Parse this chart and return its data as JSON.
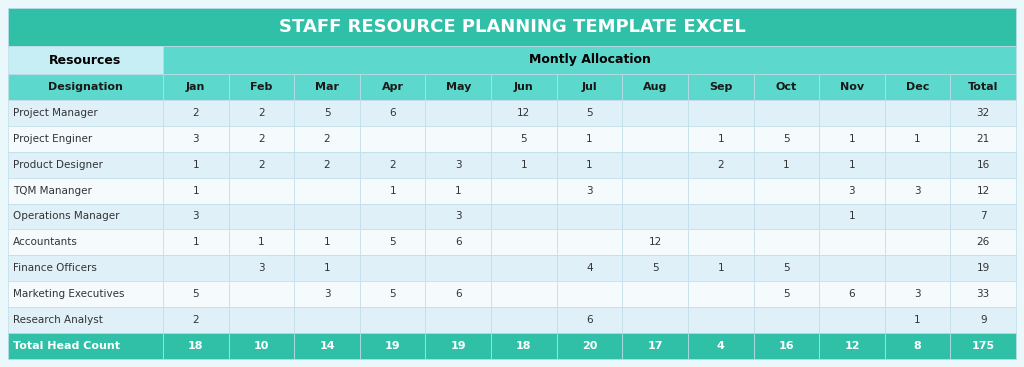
{
  "title": "STAFF RESOURCE PLANNING TEMPLATE EXCEL",
  "header1_left": "Resources",
  "header1_right": "Montly Allocation",
  "columns": [
    "Designation",
    "Jan",
    "Feb",
    "Mar",
    "Apr",
    "May",
    "Jun",
    "Jul",
    "Aug",
    "Sep",
    "Oct",
    "Nov",
    "Dec",
    "Total"
  ],
  "rows": [
    [
      "Project Manager",
      2,
      2,
      5,
      6,
      "",
      12,
      5,
      "",
      "",
      "",
      "",
      "",
      32
    ],
    [
      "Project Enginer",
      3,
      2,
      2,
      "",
      "",
      5,
      1,
      "",
      1,
      5,
      1,
      1,
      21
    ],
    [
      "Product Designer",
      1,
      2,
      2,
      2,
      3,
      1,
      1,
      "",
      2,
      1,
      1,
      "",
      16
    ],
    [
      "TQM Mananger",
      1,
      "",
      "",
      1,
      1,
      "",
      3,
      "",
      "",
      "",
      3,
      3,
      12
    ],
    [
      "Operations Manager",
      3,
      "",
      "",
      "",
      3,
      "",
      "",
      "",
      "",
      "",
      1,
      "",
      7
    ],
    [
      "Accountants",
      1,
      1,
      1,
      5,
      6,
      "",
      "",
      12,
      "",
      "",
      "",
      "",
      26
    ],
    [
      "Finance Officers",
      "",
      3,
      1,
      "",
      "",
      "",
      4,
      5,
      1,
      5,
      "",
      "",
      19
    ],
    [
      "Marketing Executives",
      5,
      "",
      3,
      5,
      6,
      "",
      "",
      "",
      "",
      5,
      6,
      3,
      33
    ],
    [
      "Research Analyst",
      2,
      "",
      "",
      "",
      "",
      "",
      6,
      "",
      "",
      "",
      "",
      1,
      9
    ]
  ],
  "totals": [
    "Total Head Count",
    18,
    10,
    14,
    19,
    19,
    18,
    20,
    17,
    4,
    16,
    12,
    8,
    175
  ],
  "colors": {
    "title_bg": "#30c0a8",
    "title_text": "#ffffff",
    "header1_left_bg": "#c8eef5",
    "header1_right_bg": "#5dd8cc",
    "header1_text": "#000000",
    "header2_bg": "#5dd8cc",
    "header2_text": "#1a1a1a",
    "row_odd_bg": "#dff0f8",
    "row_even_bg": "#f5fbfd",
    "row_text": "#333333",
    "total_bg": "#30c0a8",
    "total_text": "#ffffff",
    "outer_bg": "#eaf8fc",
    "grid": "#c0dde8"
  },
  "fig_width": 10.24,
  "fig_height": 3.67,
  "dpi": 100
}
